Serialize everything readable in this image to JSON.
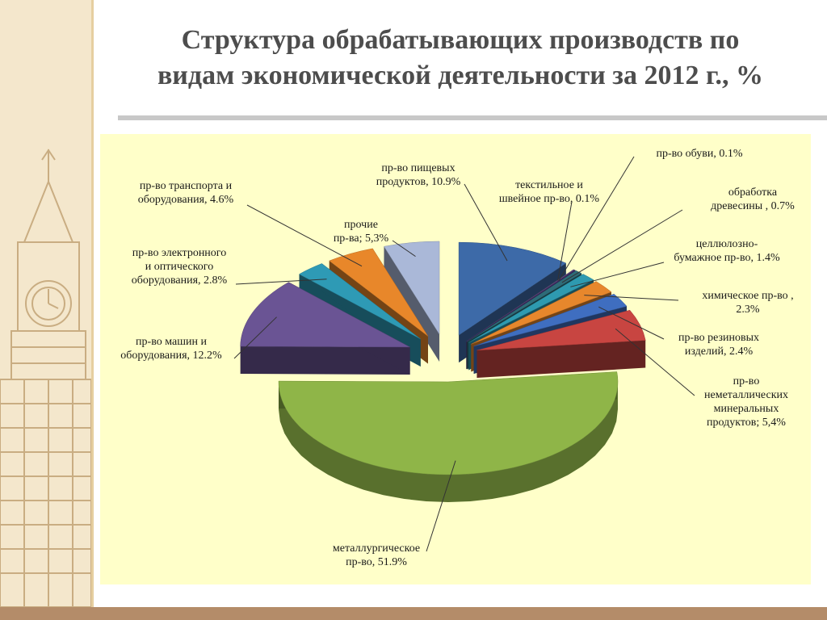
{
  "title": {
    "line1": "Структура обрабатывающих производств по",
    "line2": "видам экономической деятельности за 2012 г., %"
  },
  "colors": {
    "side_panel": "#f4e7cc",
    "chart_background": "#ffffc9",
    "bottom_bar": "#b48c69"
  },
  "chart_data": {
    "type": "pie",
    "style": "3d-exploded",
    "unit": "%",
    "slices": [
      {
        "value": 10.9,
        "color": "#3d6aa8",
        "label": [
          "пр-во пищевых",
          "продуктов, 10.9%"
        ]
      },
      {
        "value": 0.1,
        "color": "#6b5b86",
        "label": [
          "текстильное и",
          "швейное пр-во, 0.1%"
        ]
      },
      {
        "value": 0.1,
        "color": "#4a2e74",
        "label": [
          "пр-во обуви, 0.1%"
        ]
      },
      {
        "value": 0.7,
        "color": "#2e6b78",
        "label": [
          "обработка",
          "древесины , 0.7%"
        ]
      },
      {
        "value": 1.4,
        "color": "#2e9ab0",
        "label": [
          "целлюлозно-",
          "бумажное пр-во, 1.4%"
        ]
      },
      {
        "value": 2.3,
        "color": "#e7872c",
        "label": [
          "химическое пр-во ,",
          "2.3%"
        ]
      },
      {
        "value": 2.4,
        "color": "#3f6ec0",
        "label": [
          "пр-во резиновых",
          "изделий, 2.4%"
        ]
      },
      {
        "value": 5.4,
        "color": "#c84541",
        "label": [
          "пр-во",
          "неметаллических",
          "минеральных",
          "продуктов; 5,4%"
        ]
      },
      {
        "value": 51.9,
        "color": "#8fb548",
        "label": [
          "металлургическое",
          "пр-во, 51.9%"
        ]
      },
      {
        "value": 12.2,
        "color": "#6a5494",
        "label": [
          "пр-во машин и",
          "оборудования, 12.2%"
        ]
      },
      {
        "value": 2.8,
        "color": "#2e9ab5",
        "label": [
          "пр-во электронного",
          "и  оптического",
          "оборудования, 2.8%"
        ]
      },
      {
        "value": 4.6,
        "color": "#e8872a",
        "label": [
          "пр-во транспорта и",
          "оборудования, 4.6%"
        ]
      },
      {
        "value": 5.3,
        "color": "#aab8d8",
        "label": [
          "прочие",
          "пр-ва; 5,3%"
        ]
      }
    ]
  }
}
